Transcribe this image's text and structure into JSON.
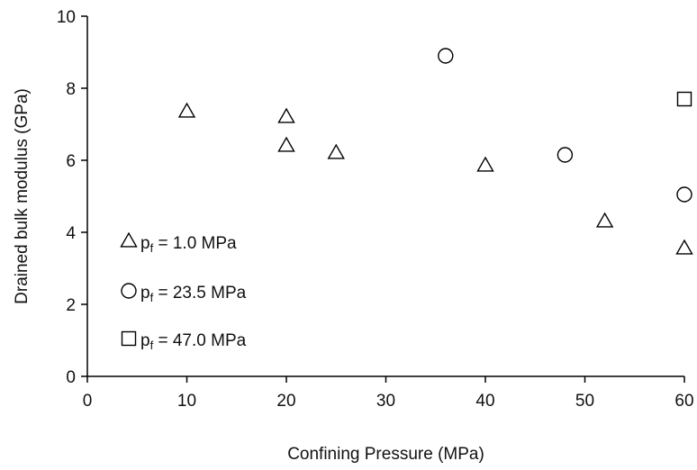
{
  "chart_data": {
    "type": "scatter",
    "title": "",
    "xlabel": "Confining Pressure (MPa)",
    "ylabel": "Drained bulk modulus (GPa)",
    "xlim": [
      0,
      60
    ],
    "ylim": [
      0,
      10
    ],
    "xticks": [
      "0",
      "10",
      "20",
      "30",
      "40",
      "50",
      "60"
    ],
    "yticks": [
      "0",
      "2",
      "4",
      "6",
      "8",
      "10"
    ],
    "grid": false,
    "legend_position": "lower-left",
    "series": [
      {
        "name": "pf = 1.0 MPa",
        "legend_main": "p",
        "legend_sub": "f",
        "legend_rest": " = 1.0 MPa",
        "marker": "triangle",
        "x": [
          10,
          20,
          20,
          25,
          40,
          52,
          60
        ],
        "y": [
          7.35,
          7.2,
          6.4,
          6.2,
          5.85,
          4.3,
          3.55
        ]
      },
      {
        "name": "pf = 23.5 MPa",
        "legend_main": "p",
        "legend_sub": "f",
        "legend_rest": " = 23.5 MPa",
        "marker": "circle",
        "x": [
          36,
          48,
          60
        ],
        "y": [
          8.9,
          6.15,
          5.05
        ]
      },
      {
        "name": "pf = 47.0 MPa",
        "legend_main": "p",
        "legend_sub": "f",
        "legend_rest": " = 47.0 MPa",
        "marker": "square",
        "x": [
          60
        ],
        "y": [
          7.7
        ]
      }
    ]
  }
}
